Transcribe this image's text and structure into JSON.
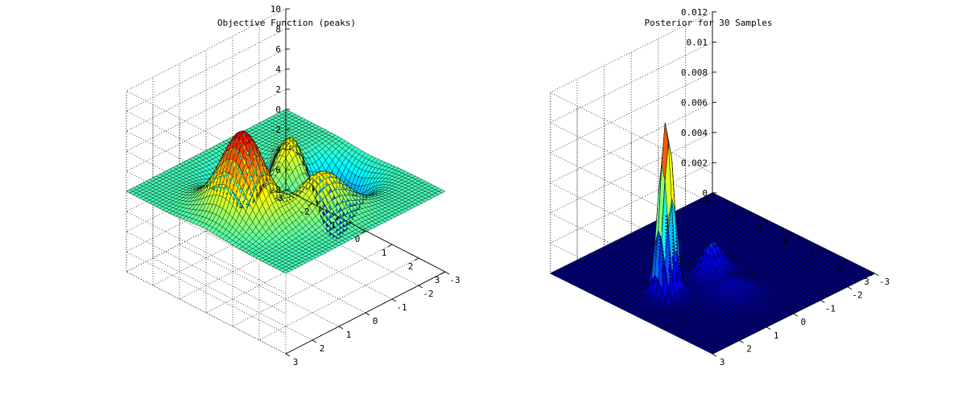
{
  "chart_data": [
    {
      "type": "surface",
      "title": "Objective Function (peaks)",
      "function": "peaks",
      "colormap": "jet",
      "grid": true,
      "xlim": [
        -3,
        3
      ],
      "ylim": [
        -3,
        3
      ],
      "zlim": [
        -8,
        10
      ],
      "x_ticks": [
        "-3",
        "-2",
        "-1",
        "0",
        "1",
        "2",
        "3"
      ],
      "y_ticks": [
        "-3",
        "-2",
        "-1",
        "0",
        "1",
        "2",
        "3"
      ],
      "z_ticks": [
        "-8",
        "-6",
        "-4",
        "-2",
        "0",
        "2",
        "4",
        "6",
        "8",
        "10"
      ],
      "z_tick_values": [
        -8,
        -6,
        -4,
        -2,
        0,
        2,
        4,
        6,
        8,
        10
      ],
      "max_value": 8.1,
      "min_value": -6.55
    },
    {
      "type": "surface",
      "title": "Posterior for 30 Samples",
      "colormap": "jet",
      "grid": true,
      "xlim": [
        -3,
        3
      ],
      "ylim": [
        -3,
        3
      ],
      "zlim": [
        0,
        0.012
      ],
      "x_ticks": [
        "-3",
        "-2",
        "-1",
        "0",
        "1",
        "2",
        "3"
      ],
      "y_ticks": [
        "-3",
        "-2",
        "-1",
        "0",
        "1",
        "2",
        "3"
      ],
      "z_ticks": [
        "0",
        "0.002",
        "0.004",
        "0.006",
        "0.008",
        "0.01",
        "0.012"
      ],
      "z_tick_values": [
        0,
        0.002,
        0.004,
        0.006,
        0.008,
        0.01,
        0.012
      ],
      "peaks": [
        {
          "x": -0.1,
          "y": 1.6,
          "height": 0.0115
        },
        {
          "x": 0.0,
          "y": 0.0,
          "height": 0.002
        },
        {
          "x": 1.0,
          "y": 0.3,
          "height": 0.0008
        }
      ]
    }
  ]
}
